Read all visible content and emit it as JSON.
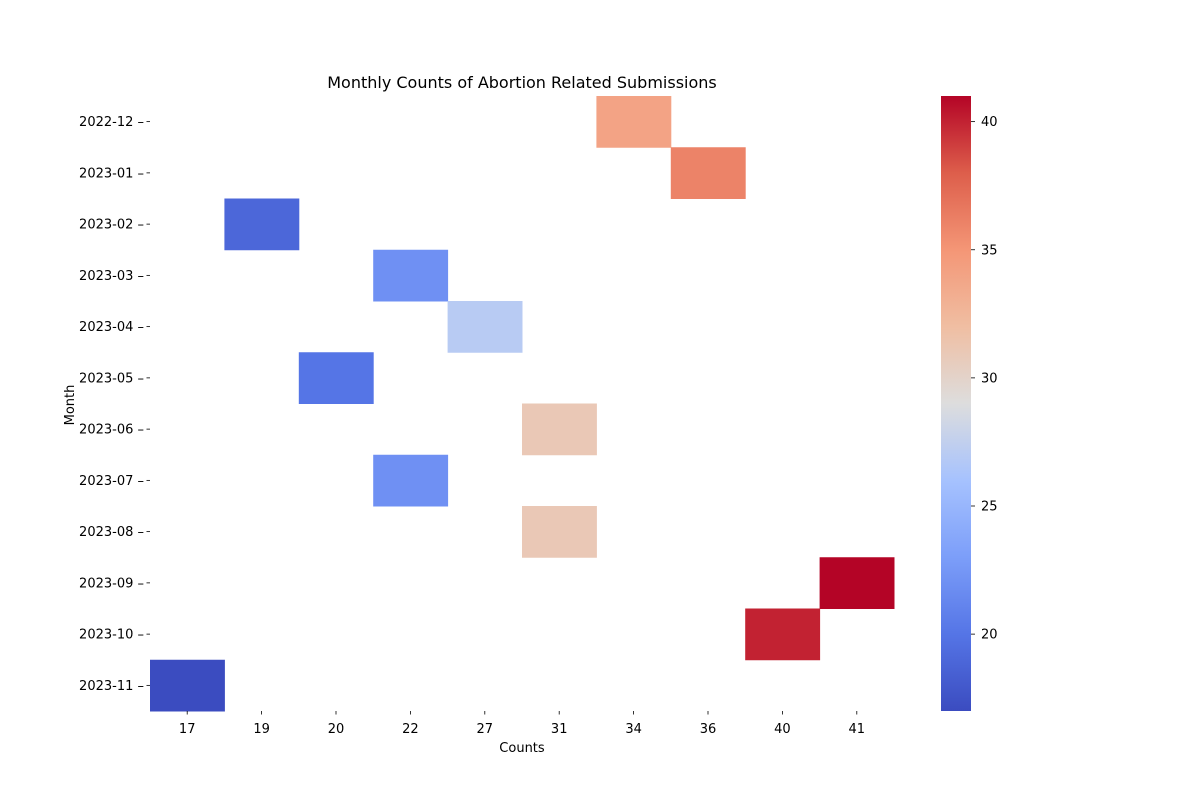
{
  "chart_data": {
    "type": "heatmap",
    "title": "Monthly Counts of Abortion Related Submissions",
    "xlabel": "Counts",
    "ylabel": "Month",
    "x_categories": [
      "17",
      "19",
      "20",
      "22",
      "27",
      "31",
      "34",
      "36",
      "40",
      "41"
    ],
    "y_categories": [
      "2022-12",
      "2023-01",
      "2023-02",
      "2023-03",
      "2023-04",
      "2023-05",
      "2023-06",
      "2023-07",
      "2023-08",
      "2023-09",
      "2023-10",
      "2023-11"
    ],
    "cells": [
      {
        "month": "2022-12",
        "count": "34",
        "value": 34
      },
      {
        "month": "2023-01",
        "count": "36",
        "value": 36
      },
      {
        "month": "2023-02",
        "count": "19",
        "value": 19
      },
      {
        "month": "2023-03",
        "count": "22",
        "value": 22
      },
      {
        "month": "2023-04",
        "count": "27",
        "value": 27
      },
      {
        "month": "2023-05",
        "count": "20",
        "value": 20
      },
      {
        "month": "2023-06",
        "count": "31",
        "value": 31
      },
      {
        "month": "2023-07",
        "count": "22",
        "value": 22
      },
      {
        "month": "2023-08",
        "count": "31",
        "value": 31
      },
      {
        "month": "2023-09",
        "count": "41",
        "value": 41
      },
      {
        "month": "2023-10",
        "count": "40",
        "value": 40
      },
      {
        "month": "2023-11",
        "count": "17",
        "value": 17
      }
    ],
    "colorbar": {
      "colormap": "coolwarm",
      "range": [
        17,
        41
      ],
      "ticks": [
        20,
        25,
        30,
        35,
        40
      ]
    },
    "grid": false
  }
}
